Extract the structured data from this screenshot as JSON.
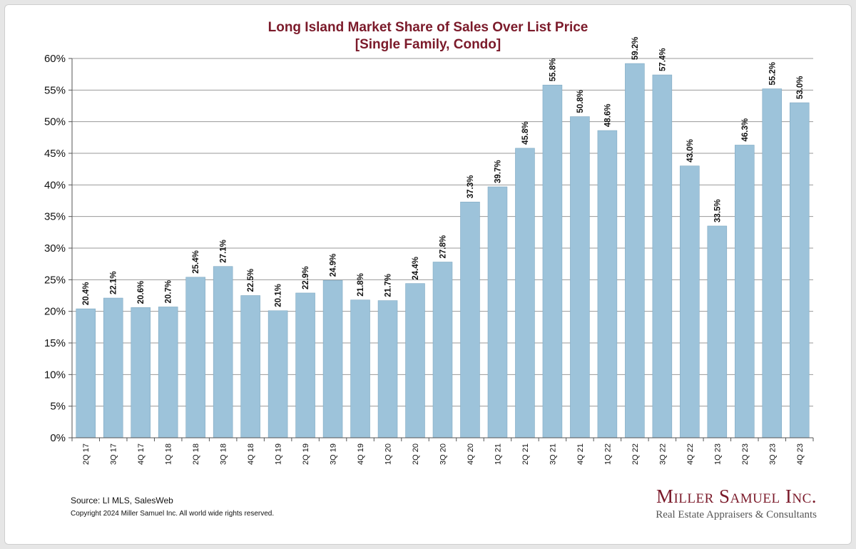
{
  "chart_data": {
    "type": "bar",
    "title_line1": "Long Island Market Share of Sales Over List Price",
    "title_line2": "[Single Family, Condo]",
    "categories": [
      "2Q 17",
      "3Q 17",
      "4Q 17",
      "1Q 18",
      "2Q 18",
      "3Q 18",
      "4Q 18",
      "1Q 19",
      "2Q 19",
      "3Q 19",
      "4Q 19",
      "1Q 20",
      "2Q 20",
      "3Q 20",
      "4Q 20",
      "1Q 21",
      "2Q 21",
      "3Q 21",
      "4Q 21",
      "1Q 22",
      "2Q 22",
      "3Q 22",
      "4Q 22",
      "1Q 23",
      "2Q 23",
      "3Q 23",
      "4Q 23"
    ],
    "values": [
      20.4,
      22.1,
      20.6,
      20.7,
      25.4,
      27.1,
      22.5,
      20.1,
      22.9,
      24.9,
      21.8,
      21.7,
      24.4,
      27.8,
      37.3,
      39.7,
      45.8,
      55.8,
      50.8,
      48.6,
      59.2,
      57.4,
      43.0,
      33.5,
      46.3,
      55.2,
      53.0
    ],
    "value_labels": [
      "20.4%",
      "22.1%",
      "20.6%",
      "20.7%",
      "25.4%",
      "27.1%",
      "22.5%",
      "20.1%",
      "22.9%",
      "24.9%",
      "21.8%",
      "21.7%",
      "24.4%",
      "27.8%",
      "37.3%",
      "39.7%",
      "45.8%",
      "55.8%",
      "50.8%",
      "48.6%",
      "59.2%",
      "57.4%",
      "43.0%",
      "33.5%",
      "46.3%",
      "55.2%",
      "53.0%"
    ],
    "y_ticks": [
      0,
      5,
      10,
      15,
      20,
      25,
      30,
      35,
      40,
      45,
      50,
      55,
      60
    ],
    "y_tick_labels": [
      "0%",
      "5%",
      "10%",
      "15%",
      "20%",
      "25%",
      "30%",
      "35%",
      "40%",
      "45%",
      "50%",
      "55%",
      "60%"
    ],
    "ylim": [
      0,
      60
    ],
    "xlabel": "",
    "ylabel": "",
    "grid": true,
    "legend": "none",
    "bar_color": "#9dc3da",
    "bar_edge_color": "#7fa9c2",
    "title_color": "#7b1a2a"
  },
  "footer": {
    "source": "Source:  LI MLS, SalesWeb",
    "copyright": "Copyright 2024 Miller Samuel Inc.  All world wide rights reserved."
  },
  "logo": {
    "name": "Miller Samuel Inc.",
    "tagline": "Real Estate Appraisers & Consultants"
  }
}
